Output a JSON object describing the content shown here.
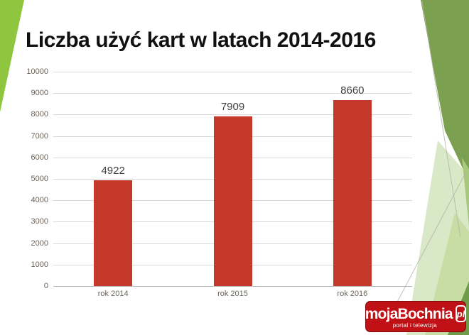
{
  "slide": {
    "title": "Liczba użyć kart w latach 2014-2016"
  },
  "chart_data": {
    "type": "bar",
    "title": "Liczba użyć kart w latach 2014-2016",
    "categories": [
      "rok 2014",
      "rok 2015",
      "rok 2016"
    ],
    "values": [
      4922,
      7909,
      8660
    ],
    "data_labels": [
      "4922",
      "7909",
      "8660"
    ],
    "xlabel": "",
    "ylabel": "",
    "ylim": [
      0,
      10000
    ],
    "ytick_step": 1000,
    "yticks": [
      0,
      1000,
      2000,
      3000,
      4000,
      5000,
      6000,
      7000,
      8000,
      9000,
      10000
    ],
    "grid": true,
    "legend": "none",
    "bar_color": "#c4392a",
    "value_label_color": "#3f3f3f",
    "axis_tick_color": "#6a6258",
    "grid_color": "#d9d9d9",
    "axis_line_color": "#b5b5b5"
  },
  "logo": {
    "brand": "mojaBochnia",
    "tld": "pl",
    "tagline": "portal i telewizja",
    "bg_color": "#bf1116",
    "text_color": "#ffffff"
  },
  "theme": {
    "left_wedge_green": "#8ec63f",
    "right_wedge_green": "#7ba04f",
    "facet_pale_green": "#d9e8c6",
    "facet_light_green": "#c7dda4",
    "facet_mid_green": "#a9c87e",
    "facet_dark_green": "#6f9c49"
  }
}
